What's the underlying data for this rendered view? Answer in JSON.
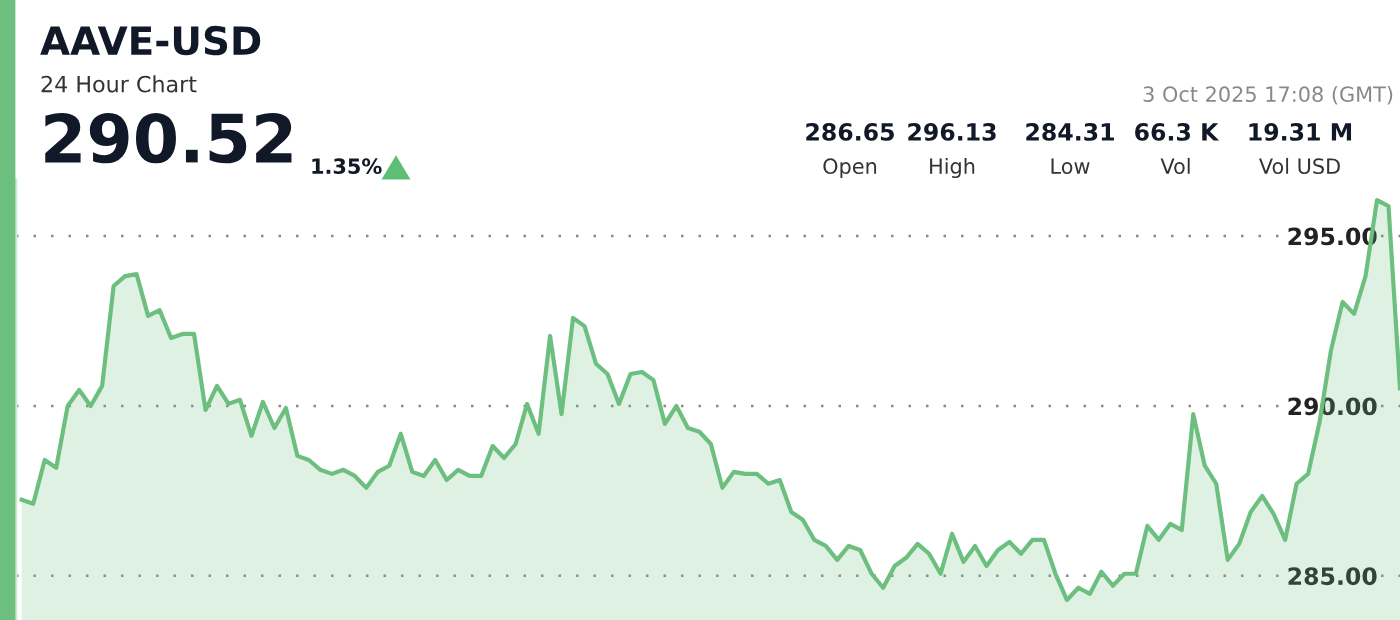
{
  "chart_data": {
    "type": "area",
    "title": "AAVE-USD",
    "subtitle": "24 Hour Chart",
    "annotations": [
      "290.52",
      "1.35%",
      "3 Oct 2025 17:08 (GMT)",
      "286.65",
      "Open",
      "296.13",
      "High",
      "284.31",
      "Low",
      "66.3 K",
      "Vol",
      "19.31 M",
      "Vol USD"
    ],
    "categories": [
      null,
      null,
      null,
      null,
      null,
      null,
      null,
      null,
      null,
      null,
      null,
      null,
      null,
      null,
      null,
      null,
      null,
      null,
      null,
      null,
      null,
      null,
      null,
      null,
      null,
      null,
      null,
      null,
      null,
      null,
      null,
      null,
      null,
      null,
      null,
      null,
      null,
      null,
      null,
      null,
      null,
      null,
      null,
      null,
      null,
      null,
      null,
      null,
      null,
      null,
      null,
      null,
      null,
      null,
      null,
      null,
      null,
      null,
      null,
      null,
      null,
      null,
      null,
      null,
      null,
      null,
      null,
      null,
      null,
      null,
      null,
      null,
      null,
      null,
      null,
      null,
      null,
      null,
      null,
      null,
      null,
      null,
      null,
      null,
      null,
      null,
      null,
      null,
      null,
      null,
      null,
      null,
      null,
      null,
      null,
      null,
      null,
      null,
      null,
      null,
      null,
      null,
      null,
      null,
      null,
      null,
      null,
      null,
      null,
      null,
      null,
      null,
      null,
      null,
      null,
      null,
      null,
      null,
      null,
      null,
      null
    ],
    "series": [
      {
        "color": "#6cbf7f",
        "values": [
          287.24,
          287.12,
          288.41,
          288.18,
          290.0,
          290.47,
          290.0,
          290.59,
          293.53,
          293.82,
          293.88,
          292.65,
          292.82,
          292.0,
          292.12,
          292.12,
          289.88,
          290.59,
          290.06,
          290.18,
          289.12,
          290.12,
          289.35,
          289.94,
          288.53,
          288.41,
          288.12,
          288.0,
          288.12,
          287.94,
          287.59,
          288.06,
          288.24,
          289.18,
          288.06,
          287.94,
          288.41,
          287.82,
          288.12,
          287.94,
          287.94,
          288.82,
          288.47,
          288.88,
          290.06,
          289.18,
          292.06,
          289.76,
          292.59,
          292.35,
          291.24,
          290.94,
          290.06,
          290.94,
          291.0,
          290.76,
          289.47,
          290.0,
          289.35,
          289.24,
          288.88,
          287.59,
          288.06,
          288.0,
          288.0,
          287.71,
          287.82,
          286.88,
          286.65,
          286.06,
          285.88,
          285.47,
          285.88,
          285.76,
          285.06,
          284.65,
          285.29,
          285.53,
          285.94,
          285.65,
          285.06,
          286.24,
          285.41,
          285.88,
          285.29,
          285.76,
          286.0,
          285.65,
          286.06,
          286.06,
          285.06,
          284.29,
          284.65,
          284.47,
          285.12,
          284.71,
          285.06,
          285.06,
          286.47,
          286.06,
          286.53,
          286.35,
          289.76,
          288.24,
          287.71,
          285.47,
          285.94,
          286.88,
          287.35,
          286.82,
          286.06,
          287.71,
          288.0,
          289.53,
          291.65,
          293.06,
          292.71,
          293.82,
          296.06,
          295.88,
          290.52
        ]
      }
    ],
    "ylim": [
      283.7,
      296.65
    ],
    "yticks": [
      {
        "value": 285,
        "label": "285.00"
      },
      {
        "value": 290,
        "label": "290.00"
      },
      {
        "value": 295,
        "label": "295.00"
      }
    ],
    "grid": "y",
    "marker": "none",
    "line_style": "solid"
  }
}
